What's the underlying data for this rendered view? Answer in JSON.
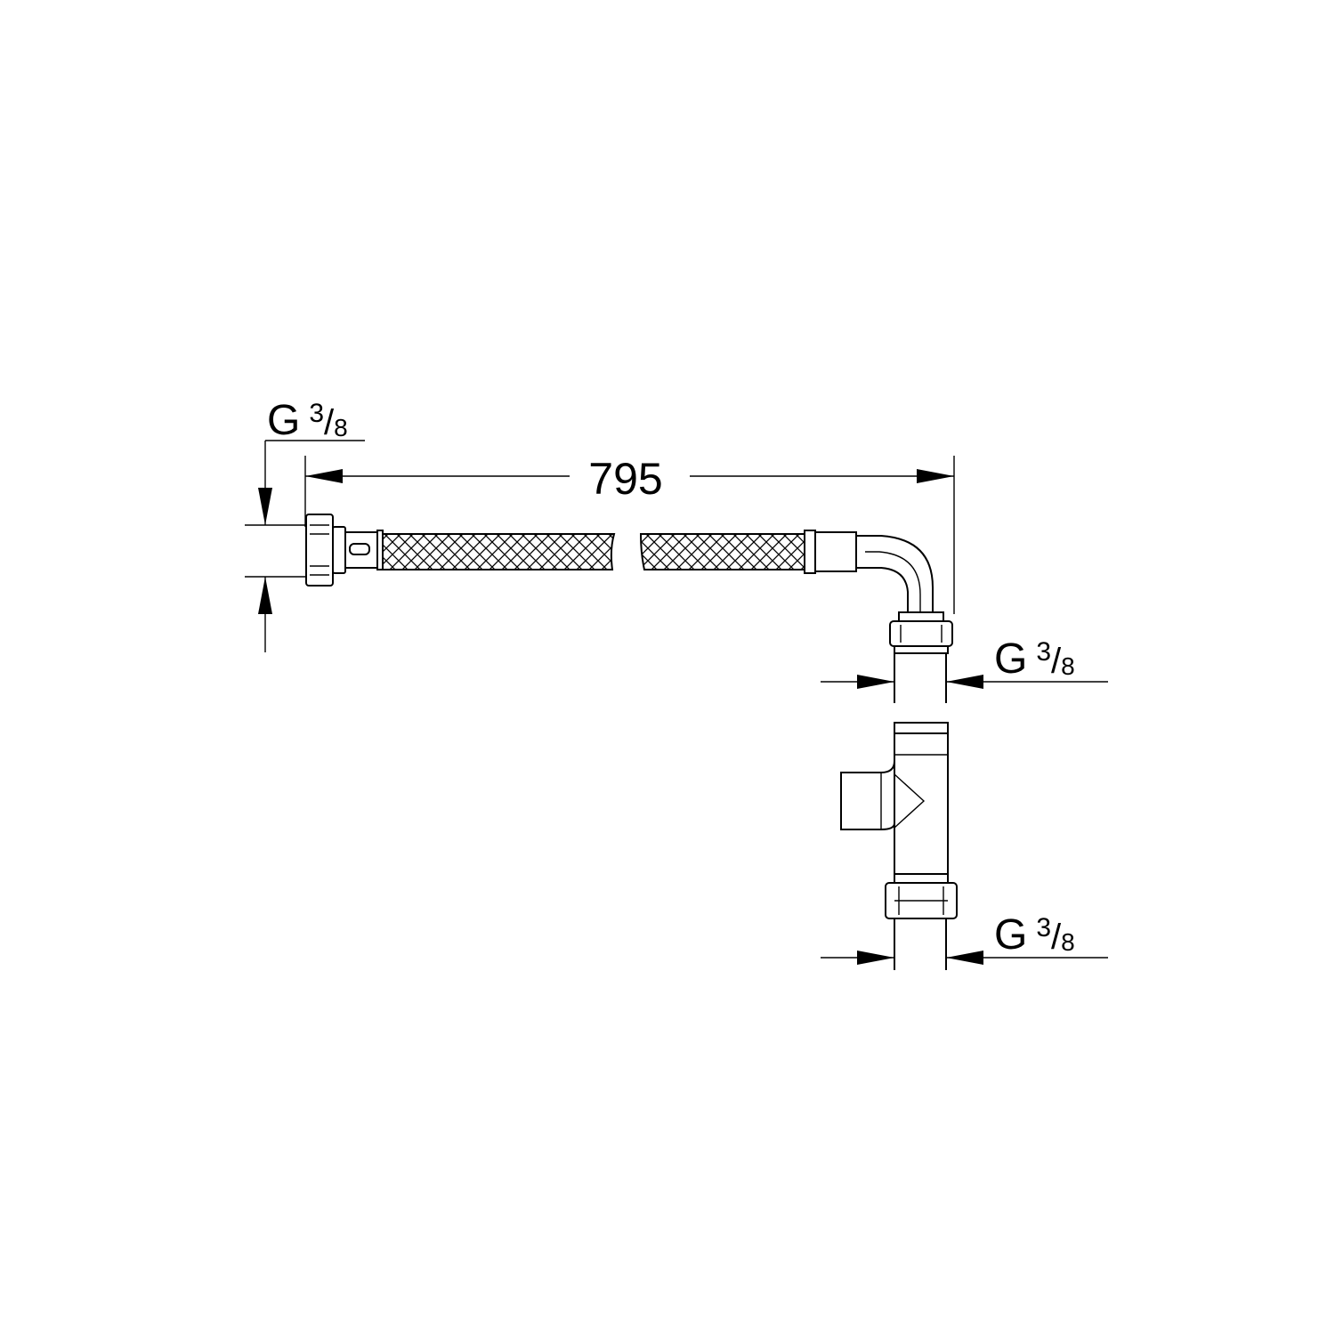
{
  "drawing": {
    "length_label": "795",
    "thread_labels": [
      {
        "prefix": "G",
        "numerator": "3",
        "slash": "/",
        "denominator": "8"
      },
      {
        "prefix": "G",
        "numerator": "3",
        "slash": "/",
        "denominator": "8"
      },
      {
        "prefix": "G",
        "numerator": "3",
        "slash": "/",
        "denominator": "8"
      }
    ]
  }
}
